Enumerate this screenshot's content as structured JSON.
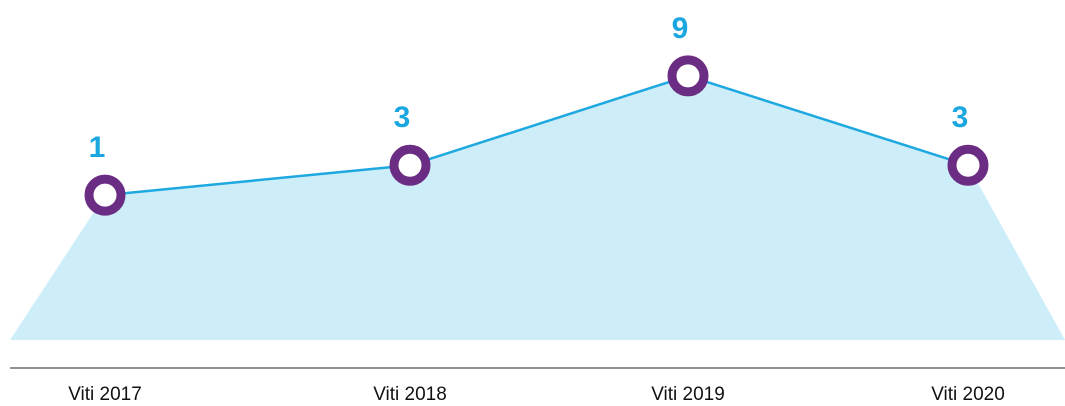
{
  "chart_data": {
    "type": "area",
    "categories": [
      "Viti 2017",
      "Viti 2018",
      "Viti 2019",
      "Viti 2020"
    ],
    "values": [
      1,
      3,
      9,
      3
    ],
    "color": "#1ea8e0",
    "fill": "#cdeef9",
    "marker_color": "#6b2d83"
  }
}
